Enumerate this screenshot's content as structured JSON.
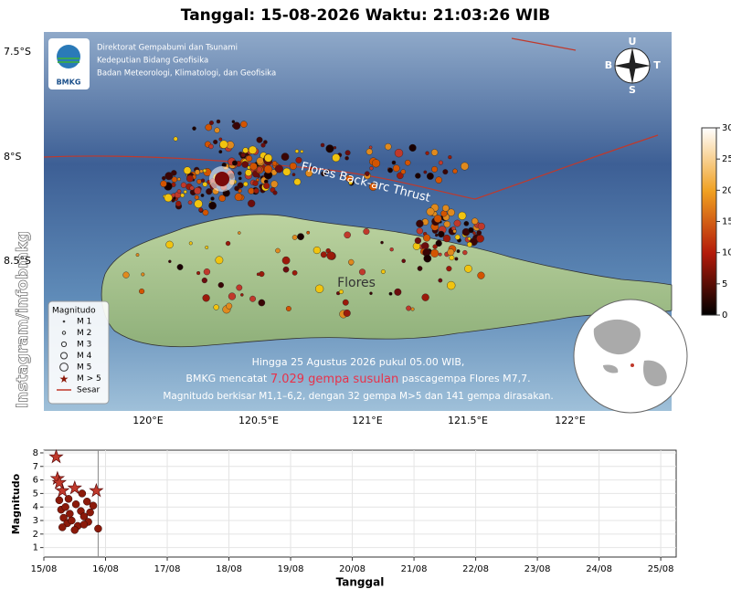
{
  "header": {
    "title": "Tanggal: 15-08-2026 Waktu: 21:03:26 WIB"
  },
  "map": {
    "logo": "BMKG",
    "agency": [
      "Direktorat Gempabumi dan Tsunami",
      "Kedeputian Bidang Geofisika",
      "Badan Meteorologi, Klimatologi, dan Geofisika"
    ],
    "compass": {
      "n": "U",
      "w": "B",
      "e": "T",
      "s": "S"
    },
    "lat_labels": [
      "7.5°S",
      "8°S",
      "8.5°S"
    ],
    "lon_labels": [
      "120°E",
      "120.5°E",
      "121°E",
      "121.5°E",
      "122°E"
    ],
    "fault_label": "Flores Back-arc Thrust",
    "island_label": "Flores",
    "caption": {
      "line1": "Hingga 25 Agustus 2026 pukul 05.00 WIB,",
      "line2_before": "BMKG mencatat ",
      "line2_highlight": "7.029 gempa susulan",
      "line2_after": " pascagempa Flores M7,7.",
      "line3": "Magnitudo berkisar M1,1–6,2, dengan 32 gempa M>5 dan 141 gempa dirasakan."
    },
    "legend": {
      "title": "Magnitudo",
      "items": [
        "M 1",
        "M 2",
        "M 3",
        "M 4",
        "M 5",
        "M > 5",
        "Sesar"
      ]
    },
    "colorbar": {
      "ticks": [
        0,
        5,
        10,
        15,
        20,
        25,
        30
      ]
    },
    "watermark": "Instagram/infobmkg"
  },
  "chart_data": {
    "type": "scatter",
    "xlabel": "Tanggal",
    "ylabel": "Magnitudo",
    "color": "#8b1a0a",
    "star_above": 5,
    "now": 15.88,
    "x": [
      15.2,
      15.22,
      15.25,
      15.28,
      15.3,
      15.32,
      15.35,
      15.38,
      15.4,
      15.42,
      15.45,
      15.5,
      15.52,
      15.55,
      15.6,
      15.62,
      15.65,
      15.7,
      15.72,
      15.75,
      15.8,
      15.85,
      15.88,
      15.3,
      15.5,
      15.65,
      15.25
    ],
    "values": [
      7.7,
      6.1,
      4.5,
      3.8,
      5.2,
      3.2,
      4.0,
      2.8,
      4.6,
      3.5,
      3.0,
      5.4,
      4.2,
      2.6,
      3.7,
      5.0,
      3.3,
      4.4,
      2.9,
      3.6,
      4.1,
      5.2,
      2.4,
      2.5,
      2.3,
      2.7,
      5.8
    ],
    "xlim": [
      15,
      25.25
    ],
    "ylim": [
      0.3,
      8.2
    ],
    "yticks": [
      1,
      2,
      3,
      4,
      5,
      6,
      7,
      8
    ],
    "xticks": [
      {
        "value": 15,
        "label": "15/08"
      },
      {
        "value": 16,
        "label": "16/08"
      },
      {
        "value": 17,
        "label": "17/08"
      },
      {
        "value": 18,
        "label": "18/08"
      },
      {
        "value": 19,
        "label": "19/08"
      },
      {
        "value": 20,
        "label": "20/08"
      },
      {
        "value": 21,
        "label": "21/08"
      },
      {
        "value": 22,
        "label": "22/08"
      },
      {
        "value": 23,
        "label": "23/08"
      },
      {
        "value": 24,
        "label": "24/08"
      },
      {
        "value": 25,
        "label": "25/08"
      }
    ],
    "grid": true
  }
}
